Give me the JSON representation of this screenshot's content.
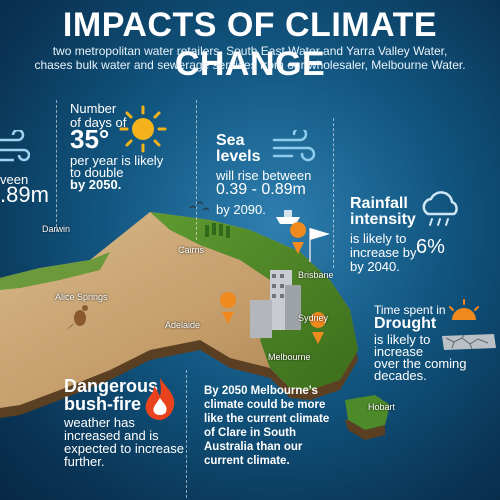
{
  "header": {
    "title": "IMPACTS OF CLIMATE CHANGE",
    "subtitle_line1": "two metropolitan water retailers, South East Water and Yarra Valley Water,",
    "subtitle_line2": "chases bulk water and sewerage services from our wholesaler, Melbourne Water."
  },
  "left_partial": {
    "line1": "veen",
    "line2": ".89m"
  },
  "temperature": {
    "intro": "Number of days of",
    "value": "35°",
    "body1": "per year is likely",
    "body2": "to double",
    "body3": "by 2050.",
    "icon": "sun-icon"
  },
  "sea_levels": {
    "heading1": "Sea",
    "heading2": "levels",
    "body1": "will rise between",
    "range": "0.39 - 0.89m",
    "by": "by 2090.",
    "icon": "wind-icon"
  },
  "rainfall": {
    "heading1": "Rainfall",
    "heading2": "intensity",
    "body1": "is likely to",
    "body2": "increase by",
    "value": "6%",
    "by": "by 2040.",
    "icon": "rain-cloud-icon"
  },
  "drought": {
    "intro": "Time spent in",
    "heading": "Drought",
    "body1": "is likely to",
    "body2": "increase",
    "body3": "over the coming",
    "body4": "decades.",
    "icon": "cracked-earth-icon"
  },
  "bushfire": {
    "heading1": "Dangerous",
    "heading2": "bush-fire",
    "body1": "weather has",
    "body2": "increased and is",
    "body3": "expected to increase",
    "body4": "further.",
    "icon": "fire-icon"
  },
  "melbourne_climate": {
    "line1": "By 2050 Melbourne's",
    "line2": "climate could be more",
    "line3": "like the current climate",
    "line4": "of Clare in South",
    "line5": "Australia than our",
    "line6": "current climate."
  },
  "map_labels": {
    "darwin": "Darwin",
    "cairns": "Cairns",
    "alice_springs": "Alice Springs",
    "adelaide": "Adelaide",
    "brisbane": "Brisbane",
    "sydney": "Sydney",
    "melbourne": "Melbourne",
    "hobart": "Hobart"
  },
  "colors": {
    "ocean_dark": "#0a3557",
    "ocean_light": "#2e7fb0",
    "land_green": "#4f8a2a",
    "land_desert": "#c9a878",
    "sun": "#f6b21a",
    "pin": "#f08a1f",
    "fire": "#e8431c"
  }
}
